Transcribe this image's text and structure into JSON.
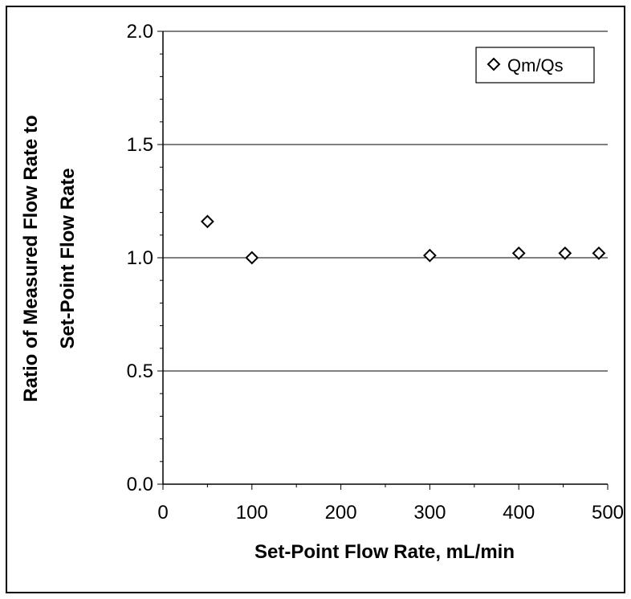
{
  "chart_data": {
    "type": "scatter",
    "title": "",
    "xlabel": "Set-Point Flow Rate, mL/min",
    "ylabel_lines": [
      "Ratio of Measured Flow Rate to",
      "Set-Point Flow Rate"
    ],
    "xlim": [
      0,
      500
    ],
    "ylim": [
      0.0,
      2.0
    ],
    "x_ticks": [
      0,
      100,
      200,
      300,
      400,
      500
    ],
    "x_tick_labels": [
      "0",
      "100",
      "200",
      "300",
      "400",
      "500"
    ],
    "y_ticks": [
      0.0,
      0.5,
      1.0,
      1.5,
      2.0
    ],
    "y_tick_labels": [
      "0.0",
      "0.5",
      "1.0",
      "1.5",
      "2.0"
    ],
    "grid": "horizontal major",
    "legend_position": "top-right",
    "series": [
      {
        "name": "Qm/Qs",
        "marker": "diamond",
        "color": "#000000",
        "x": [
          50,
          100,
          300,
          400,
          452,
          490
        ],
        "y": [
          1.16,
          1.0,
          1.01,
          1.02,
          1.02,
          1.02
        ]
      }
    ]
  }
}
